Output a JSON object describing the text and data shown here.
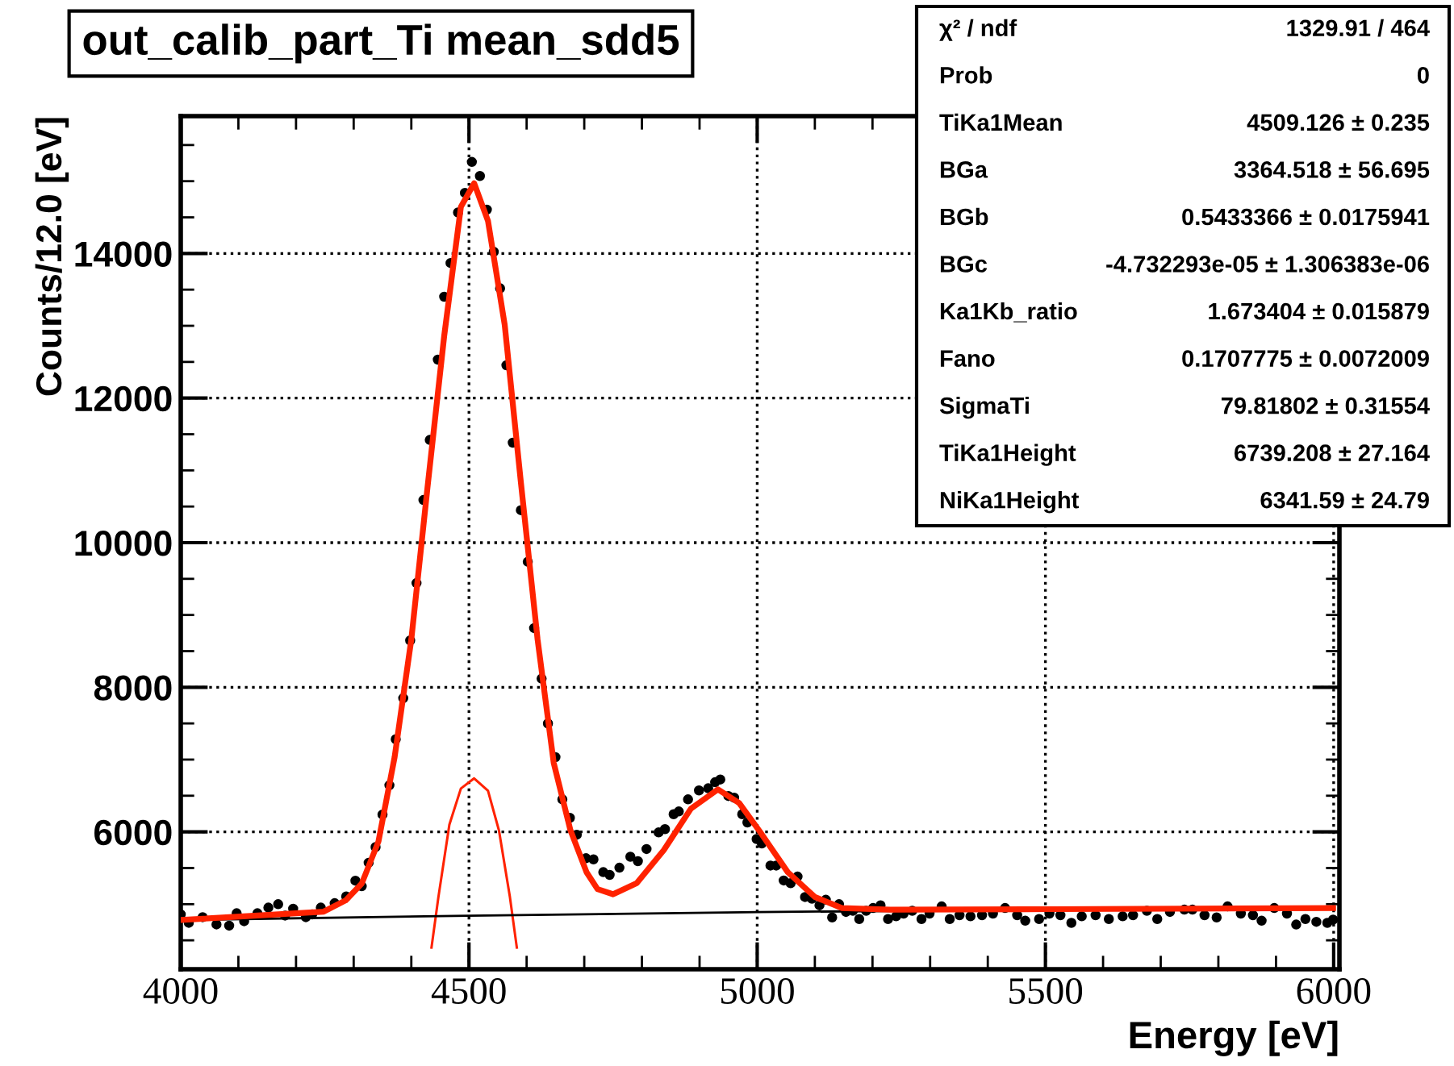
{
  "chart_data": {
    "type": "scatter",
    "title": "out_calib_part_Ti mean_sdd5",
    "xlabel": "Energy [eV]",
    "ylabel": "Counts/12.0 [eV]",
    "xlim": [
      4000,
      6010
    ],
    "ylim": [
      4100,
      15900
    ],
    "xticks": [
      4000,
      4500,
      5000,
      5500,
      6000
    ],
    "yticks": [
      6000,
      8000,
      10000,
      12000,
      14000
    ],
    "grid": true,
    "series": [
      {
        "marker": "circle",
        "color": "#000000",
        "x": [
          4000,
          4014,
          4038,
          4062,
          4084,
          4097,
          4110,
          4133,
          4152,
          4169,
          4181,
          4195,
          4217,
          4228,
          4243,
          4267,
          4287,
          4303,
          4314,
          4326,
          4338,
          4350,
          4362,
          4373,
          4386,
          4398,
          4409,
          4421,
          4432,
          4446,
          4457,
          4468,
          4481,
          4493,
          4505,
          4519,
          4531,
          4543,
          4554,
          4565,
          4576,
          4590,
          4602,
          4613,
          4626,
          4637,
          4650,
          4662,
          4675,
          4687,
          4703,
          4716,
          4733,
          4744,
          4761,
          4780,
          4793,
          4808,
          4829,
          4840,
          4855,
          4864,
          4880,
          4899,
          4915,
          4927,
          4936,
          4950,
          4960,
          4974,
          4983,
          4999,
          5008,
          5023,
          5033,
          5046,
          5058,
          5070,
          5083,
          5095,
          5108,
          5119,
          5130,
          5142,
          5154,
          5166,
          5177,
          5189,
          5201,
          5214,
          5227,
          5241,
          5254,
          5269,
          5285,
          5299,
          5320,
          5334,
          5351,
          5370,
          5390,
          5409,
          5430,
          5451,
          5465,
          5489,
          5507,
          5526,
          5545,
          5563,
          5587,
          5610,
          5634,
          5652,
          5676,
          5694,
          5716,
          5741,
          5755,
          5776,
          5797,
          5816,
          5839,
          5860,
          5875,
          5897,
          5919,
          5935,
          5951,
          5970,
          5989,
          5999
        ],
        "values": [
          4858,
          4742,
          4820,
          4720,
          4703,
          4874,
          4765,
          4874,
          4952,
          5000,
          4843,
          4936,
          4820,
          4858,
          4952,
          5014,
          5107,
          5325,
          5248,
          5573,
          5790,
          6240,
          6645,
          7281,
          7849,
          8648,
          9441,
          10590,
          11421,
          12532,
          13402,
          13868,
          14567,
          14839,
          15266,
          15072,
          14606,
          14023,
          13518,
          12454,
          11383,
          10450,
          9736,
          8819,
          8120,
          7499,
          7033,
          6450,
          6194,
          5961,
          5635,
          5620,
          5443,
          5405,
          5504,
          5656,
          5595,
          5763,
          5992,
          6038,
          6244,
          6282,
          6450,
          6573,
          6603,
          6687,
          6725,
          6496,
          6473,
          6244,
          6130,
          5901,
          5840,
          5534,
          5534,
          5328,
          5290,
          5382,
          5099,
          5076,
          4985,
          5061,
          4817,
          5000,
          4893,
          4908,
          4794,
          4908,
          4947,
          4985,
          4794,
          4832,
          4870,
          4908,
          4794,
          4870,
          4969,
          4794,
          4847,
          4832,
          4847,
          4870,
          4947,
          4847,
          4771,
          4794,
          4870,
          4847,
          4741,
          4832,
          4847,
          4794,
          4832,
          4847,
          4908,
          4794,
          4893,
          4924,
          4924,
          4847,
          4817,
          4969,
          4870,
          4847,
          4771,
          4947,
          4870,
          4718,
          4794,
          4756,
          4741,
          4786
        ]
      },
      {
        "type": "line",
        "color": "#ff2200",
        "x": [
          4000,
          4248,
          4286,
          4314,
          4343,
          4371,
          4400,
          4428,
          4457,
          4486,
          4509,
          4533,
          4562,
          4590,
          4619,
          4647,
          4676,
          4704,
          4723,
          4750,
          4791,
          4838,
          4885,
          4932,
          4969,
          5007,
          5053,
          5100,
          5147,
          5231,
          5512,
          5999
        ],
        "values": [
          4781,
          4897,
          5052,
          5285,
          5868,
          7033,
          8663,
          10761,
          12858,
          14645,
          14971,
          14450,
          13013,
          10838,
          8663,
          6955,
          6023,
          5441,
          5208,
          5137,
          5290,
          5748,
          6321,
          6588,
          6397,
          5977,
          5443,
          5099,
          4947,
          4924,
          4931,
          4947
        ]
      },
      {
        "type": "line",
        "color": "#ff2200",
        "x": [
          4435,
          4447,
          4466,
          4486,
          4509,
          4533,
          4552,
          4571,
          4583
        ],
        "values": [
          4400,
          5100,
          6100,
          6600,
          6740,
          6570,
          6020,
          5100,
          4400
        ]
      },
      {
        "type": "line",
        "color": "#000000",
        "x": [
          4000,
          4500,
          5000,
          5500,
          6000
        ],
        "values": [
          4781,
          4840,
          4890,
          4925,
          4947
        ]
      }
    ],
    "annotations": [
      "χ² / ndf",
      "1329.91 / 464",
      "Prob",
      "0",
      "TiKa1Mean",
      "4509.126 ± 0.235",
      "BGa",
      "3364.518 ± 56.695",
      "BGb",
      "0.5433366 ± 0.0175941",
      "BGc",
      "-4.732293e-05 ± 1.306383e-06",
      "Ka1Kb_ratio",
      "1.673404 ± 0.015879",
      "Fano",
      "0.1707775 ± 0.0072009",
      "SigmaTi",
      "79.81802 ± 0.31554",
      "TiKa1Height",
      "6739.208 ± 27.164",
      "NiKa1Height",
      "6341.59 ± 24.79"
    ]
  }
}
